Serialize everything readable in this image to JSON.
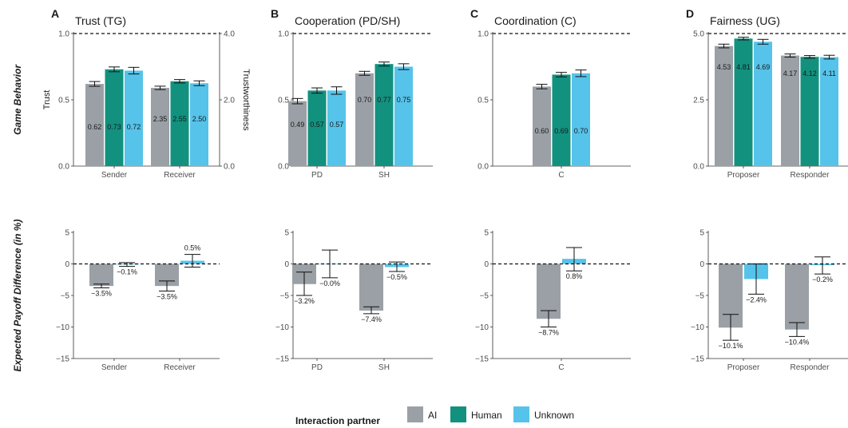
{
  "colors": {
    "AI": "#9aa0a6",
    "Human": "#12917f",
    "Unknown": "#56c3ea"
  },
  "legend": {
    "title": "Interaction partner",
    "items": [
      {
        "key": "AI",
        "label": "AI"
      },
      {
        "key": "Human",
        "label": "Human"
      },
      {
        "key": "Unknown",
        "label": "Unknown"
      }
    ]
  },
  "row_labels": {
    "top": "Game Behavior",
    "bottom": "Expected Payoff Difference (in %)"
  },
  "chart_data": [
    {
      "type": "bar",
      "row": "top",
      "letter": "A",
      "title": "Trust (TG)",
      "categories": [
        "Sender",
        "Receiver"
      ],
      "ylim": [
        0,
        1
      ],
      "yticks": [
        0,
        0.5,
        1
      ],
      "ytick_labels": [
        "0.0",
        "0.5",
        "1.0"
      ],
      "ylabel": "Trust",
      "y2": {
        "label": "Trustworthiness",
        "ylim": [
          0,
          4
        ],
        "ticks": [
          0,
          2,
          4
        ],
        "tick_labels": [
          "0.0",
          "2.0",
          "4.0"
        ]
      },
      "reference_line": 1,
      "grid": false,
      "series": [
        {
          "name": "AI",
          "color_key": "AI",
          "values": [
            0.62,
            0.59
          ],
          "err": [
            0.018,
            0.013
          ],
          "labels": [
            "0.62",
            "2.35"
          ]
        },
        {
          "name": "Human",
          "color_key": "Human",
          "values": [
            0.73,
            0.64
          ],
          "err": [
            0.018,
            0.013
          ],
          "labels": [
            "0.73",
            "2.55"
          ]
        },
        {
          "name": "Unknown",
          "color_key": "Unknown",
          "values": [
            0.72,
            0.625
          ],
          "err": [
            0.025,
            0.018
          ],
          "labels": [
            "0.72",
            "2.50"
          ]
        }
      ]
    },
    {
      "type": "bar",
      "row": "top",
      "letter": "B",
      "title": "Cooperation (PD/SH)",
      "categories": [
        "PD",
        "SH"
      ],
      "ylim": [
        0,
        1
      ],
      "yticks": [
        0,
        0.5,
        1
      ],
      "ytick_labels": [
        "0.0",
        "0.5",
        "1.0"
      ],
      "reference_line": 1,
      "grid": false,
      "series": [
        {
          "name": "AI",
          "color_key": "AI",
          "values": [
            0.49,
            0.7
          ],
          "err": [
            0.02,
            0.015
          ],
          "labels": [
            "0.49",
            "0.70"
          ]
        },
        {
          "name": "Human",
          "color_key": "Human",
          "values": [
            0.57,
            0.77
          ],
          "err": [
            0.02,
            0.015
          ],
          "labels": [
            "0.57",
            "0.77"
          ]
        },
        {
          "name": "Unknown",
          "color_key": "Unknown",
          "values": [
            0.57,
            0.75
          ],
          "err": [
            0.028,
            0.022
          ],
          "labels": [
            "0.57",
            "0.75"
          ]
        }
      ]
    },
    {
      "type": "bar",
      "row": "top",
      "letter": "C",
      "title": "Coordination (C)",
      "categories": [
        "C"
      ],
      "ylim": [
        0,
        1
      ],
      "yticks": [
        0,
        0.5,
        1
      ],
      "ytick_labels": [
        "0.0",
        "0.5",
        "1.0"
      ],
      "reference_line": 1,
      "grid": false,
      "series": [
        {
          "name": "AI",
          "color_key": "AI",
          "values": [
            0.6
          ],
          "err": [
            0.017
          ],
          "labels": [
            "0.60"
          ]
        },
        {
          "name": "Human",
          "color_key": "Human",
          "values": [
            0.69
          ],
          "err": [
            0.017
          ],
          "labels": [
            "0.69"
          ]
        },
        {
          "name": "Unknown",
          "color_key": "Unknown",
          "values": [
            0.7
          ],
          "err": [
            0.025
          ],
          "labels": [
            "0.70"
          ]
        }
      ]
    },
    {
      "type": "bar",
      "row": "top",
      "letter": "D",
      "title": "Fairness (UG)",
      "categories": [
        "Proposer",
        "Responder"
      ],
      "ylim": [
        0,
        5
      ],
      "yticks": [
        0,
        2.5,
        5
      ],
      "ytick_labels": [
        "0.0",
        "2.5",
        "5.0"
      ],
      "reference_line": 5,
      "grid": false,
      "series": [
        {
          "name": "AI",
          "color_key": "AI",
          "values": [
            4.53,
            4.17
          ],
          "err": [
            0.07,
            0.06
          ],
          "labels": [
            "4.53",
            "4.17"
          ]
        },
        {
          "name": "Human",
          "color_key": "Human",
          "values": [
            4.81,
            4.12
          ],
          "err": [
            0.05,
            0.05
          ],
          "labels": [
            "4.81",
            "4.12"
          ]
        },
        {
          "name": "Unknown",
          "color_key": "Unknown",
          "values": [
            4.69,
            4.11
          ],
          "err": [
            0.09,
            0.07
          ],
          "labels": [
            "4.69",
            "4.11"
          ]
        }
      ]
    },
    {
      "type": "bar",
      "row": "bottom",
      "letter": "",
      "title": "",
      "categories": [
        "Sender",
        "Receiver"
      ],
      "ylim": [
        -15,
        5
      ],
      "yticks": [
        -15,
        -10,
        -5,
        0,
        5
      ],
      "ytick_labels": [
        "−15",
        "−10",
        "−5",
        "0",
        "5"
      ],
      "reference_line": 0,
      "grid": false,
      "series": [
        {
          "name": "AI",
          "color_key": "AI",
          "values": [
            -3.5,
            -3.5
          ],
          "ci": [
            [
              -3.8,
              -3.2
            ],
            [
              -4.3,
              -2.7
            ]
          ],
          "labels": [
            "−3.5%",
            "−3.5%"
          ]
        },
        {
          "name": "Unknown",
          "color_key": "Unknown",
          "values": [
            -0.1,
            0.5
          ],
          "ci": [
            [
              -0.4,
              0.2
            ],
            [
              -0.5,
              1.5
            ]
          ],
          "labels": [
            "−0.1%",
            "0.5%"
          ]
        }
      ]
    },
    {
      "type": "bar",
      "row": "bottom",
      "letter": "",
      "title": "",
      "categories": [
        "PD",
        "SH"
      ],
      "ylim": [
        -15,
        5
      ],
      "yticks": [
        -15,
        -10,
        -5,
        0,
        5
      ],
      "ytick_labels": [
        "−15",
        "−10",
        "−5",
        "0",
        "5"
      ],
      "reference_line": 0,
      "grid": false,
      "series": [
        {
          "name": "AI",
          "color_key": "AI",
          "values": [
            -3.2,
            -7.4
          ],
          "ci": [
            [
              -5.0,
              -1.3
            ],
            [
              -7.9,
              -6.8
            ]
          ],
          "labels": [
            "−3.2%",
            "−7.4%"
          ]
        },
        {
          "name": "Unknown",
          "color_key": "Unknown",
          "values": [
            -0.0,
            -0.5
          ],
          "ci": [
            [
              -2.2,
              2.2
            ],
            [
              -1.2,
              0.3
            ]
          ],
          "labels": [
            "−0.0%",
            "−0.5%"
          ]
        }
      ]
    },
    {
      "type": "bar",
      "row": "bottom",
      "letter": "",
      "title": "",
      "categories": [
        "C"
      ],
      "ylim": [
        -15,
        5
      ],
      "yticks": [
        -15,
        -10,
        -5,
        0,
        5
      ],
      "ytick_labels": [
        "−15",
        "−10",
        "−5",
        "0",
        "5"
      ],
      "reference_line": 0,
      "grid": false,
      "series": [
        {
          "name": "AI",
          "color_key": "AI",
          "values": [
            -8.7
          ],
          "ci": [
            [
              -10.0,
              -7.4
            ]
          ],
          "labels": [
            "−8.7%"
          ]
        },
        {
          "name": "Unknown",
          "color_key": "Unknown",
          "values": [
            0.8
          ],
          "ci": [
            [
              -1.1,
              2.6
            ]
          ],
          "labels": [
            "0.8%"
          ]
        }
      ]
    },
    {
      "type": "bar",
      "row": "bottom",
      "letter": "",
      "title": "",
      "categories": [
        "Proposer",
        "Responder"
      ],
      "ylim": [
        -15,
        5
      ],
      "yticks": [
        -15,
        -10,
        -5,
        0,
        5
      ],
      "ytick_labels": [
        "−15",
        "−10",
        "−5",
        "0",
        "5"
      ],
      "reference_line": 0,
      "grid": false,
      "series": [
        {
          "name": "AI",
          "color_key": "AI",
          "values": [
            -10.1,
            -10.4
          ],
          "ci": [
            [
              -12.1,
              -8.0
            ],
            [
              -11.5,
              -9.3
            ]
          ],
          "labels": [
            "−10.1%",
            "−10.4%"
          ]
        },
        {
          "name": "Unknown",
          "color_key": "Unknown",
          "values": [
            -2.4,
            -0.2
          ],
          "ci": [
            [
              -4.8,
              0.0
            ],
            [
              -1.6,
              1.1
            ]
          ],
          "labels": [
            "−2.4%",
            "−0.2%"
          ]
        }
      ]
    }
  ]
}
